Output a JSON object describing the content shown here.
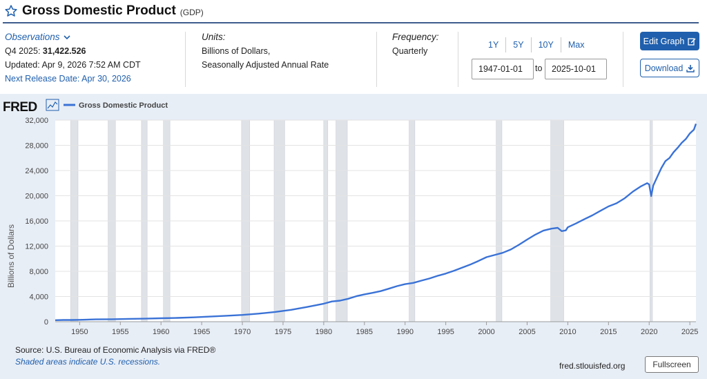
{
  "header": {
    "title": "Gross Domestic Product",
    "code": "(GDP)"
  },
  "observations": {
    "label": "Observations",
    "period": "Q4 2025:",
    "value": "31,422.526",
    "updated": "Updated: Apr 9, 2026 7:52 AM CDT",
    "next_release": "Next Release Date: Apr 30, 2026"
  },
  "units": {
    "label": "Units:",
    "line1": "Billions of Dollars,",
    "line2": "Seasonally Adjusted Annual Rate"
  },
  "frequency": {
    "label": "Frequency:",
    "value": "Quarterly"
  },
  "range": {
    "buttons": [
      "1Y",
      "5Y",
      "10Y",
      "Max"
    ],
    "start": "1947-01-01",
    "to": "to",
    "end": "2025-10-01"
  },
  "actions": {
    "edit": "Edit Graph",
    "download": "Download"
  },
  "footer": {
    "source": "Source: U.S. Bureau of Economic Analysis via FRED®",
    "shaded": "Shaded areas indicate U.S. recessions.",
    "url": "fred.stlouisfed.org",
    "fullscreen": "Fullscreen"
  },
  "colors": {
    "accent": "#1f5fad",
    "line": "#3a72d6",
    "recession": "#dfe3e8",
    "panel": "#e8eef6"
  },
  "chart_data": {
    "type": "line",
    "brand": "FRED",
    "legend": "Gross Domestic Product",
    "ylabel": "Billions of Dollars",
    "xlabel": "",
    "xlim": [
      1947,
      2025.75
    ],
    "ylim": [
      0,
      32000
    ],
    "y_ticks": [
      0,
      4000,
      8000,
      12000,
      16000,
      20000,
      24000,
      28000,
      32000
    ],
    "y_tick_labels": [
      "0",
      "4,000",
      "8,000",
      "12,000",
      "16,000",
      "20,000",
      "24,000",
      "28,000",
      "32,000"
    ],
    "x_ticks": [
      1950,
      1955,
      1960,
      1965,
      1970,
      1975,
      1980,
      1985,
      1990,
      1995,
      2000,
      2005,
      2010,
      2015,
      2020,
      2025
    ],
    "x_tick_labels": [
      "1950",
      "1955",
      "1960",
      "1965",
      "1970",
      "1975",
      "1980",
      "1985",
      "1990",
      "1995",
      "2000",
      "2005",
      "2010",
      "2015",
      "2020",
      "2025"
    ],
    "recessions": [
      [
        1948.9,
        1949.8
      ],
      [
        1953.5,
        1954.4
      ],
      [
        1957.6,
        1958.3
      ],
      [
        1960.3,
        1961.1
      ],
      [
        1969.9,
        1970.9
      ],
      [
        1973.9,
        1975.2
      ],
      [
        1980.0,
        1980.5
      ],
      [
        1981.5,
        1982.9
      ],
      [
        1990.5,
        1991.2
      ],
      [
        2001.2,
        2001.9
      ],
      [
        2007.9,
        2009.5
      ],
      [
        2020.1,
        2020.4
      ]
    ],
    "series": [
      {
        "name": "Gross Domestic Product",
        "x": [
          1947,
          1948,
          1949,
          1950,
          1952,
          1954,
          1956,
          1958,
          1960,
          1962,
          1964,
          1966,
          1968,
          1970,
          1972,
          1974,
          1976,
          1978,
          1980,
          1981,
          1982,
          1983,
          1984,
          1985,
          1986,
          1987,
          1988,
          1989,
          1990,
          1991,
          1992,
          1993,
          1994,
          1995,
          1996,
          1997,
          1998,
          1999,
          2000,
          2001,
          2002,
          2003,
          2004,
          2005,
          2006,
          2007,
          2008,
          2008.75,
          2009.25,
          2009.75,
          2010,
          2011,
          2012,
          2013,
          2014,
          2015,
          2016,
          2017,
          2018,
          2019,
          2019.75,
          2020,
          2020.25,
          2020.5,
          2021,
          2021.5,
          2022,
          2022.5,
          2023,
          2023.5,
          2024,
          2024.5,
          2025,
          2025.5,
          2025.75
        ],
        "values": [
          243,
          270,
          272,
          300,
          368,
          390,
          445,
          480,
          543,
          605,
          685,
          815,
          940,
          1073,
          1280,
          1550,
          1880,
          2350,
          2860,
          3210,
          3345,
          3635,
          4040,
          4340,
          4580,
          4855,
          5236,
          5641,
          5963,
          6158,
          6520,
          6858,
          7287,
          7640,
          8073,
          8578,
          9063,
          9631,
          10251,
          10582,
          10936,
          11458,
          12214,
          13039,
          13816,
          14452,
          14770,
          14900,
          14380,
          14500,
          14990,
          15600,
          16250,
          16880,
          17600,
          18300,
          18800,
          19600,
          20660,
          21500,
          22000,
          21800,
          19950,
          21600,
          23000,
          24400,
          25500,
          26000,
          26900,
          27600,
          28400,
          29000,
          29900,
          30500,
          31422
        ]
      }
    ]
  }
}
